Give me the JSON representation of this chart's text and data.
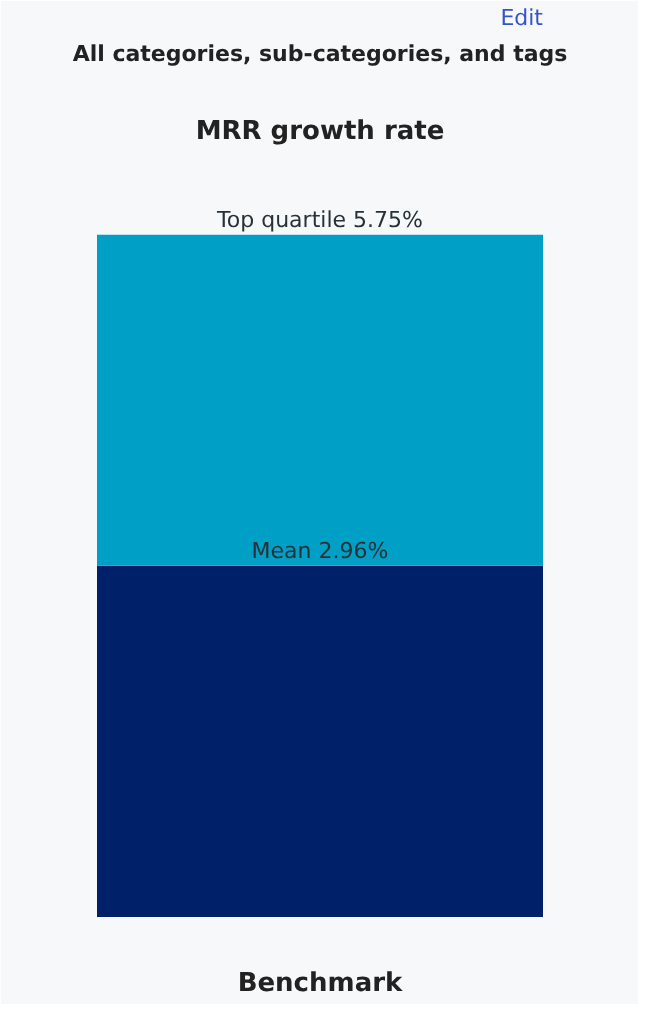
{
  "chart_data": {
    "type": "bar",
    "title": "All categories, sub-categories, and tags",
    "subtitle": "MRR growth rate",
    "xlabel": "Benchmark",
    "annotations": [
      "Edit"
    ],
    "categories": [
      null
    ],
    "stacked": true,
    "series": [
      {
        "color": "#00216a",
        "values": [
          2.96
        ],
        "value_labels": [
          "Mean 2.96%"
        ]
      },
      {
        "color": "#009fc6",
        "values": [
          2.79
        ],
        "value_labels": [
          "Top quartile 5.75%"
        ]
      }
    ],
    "grid": false
  }
}
